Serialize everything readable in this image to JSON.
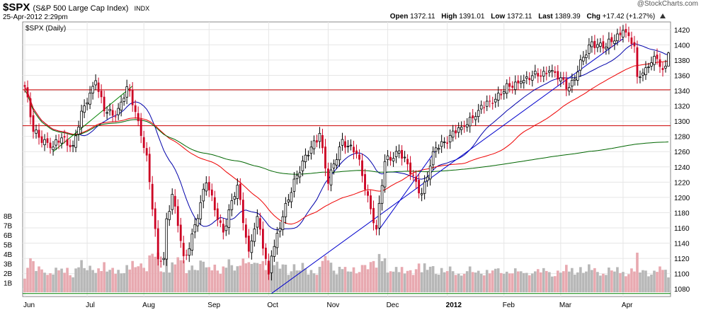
{
  "header": {
    "symbol": "$SPX",
    "name": "(S&P 500 Large Cap Index)",
    "exchange": "INDX",
    "timestamp": "25-Apr-2012 2:29pm",
    "open_label": "Open",
    "open": "1372.11",
    "high_label": "High",
    "high": "1391.01",
    "low_label": "Low",
    "low": "1372.11",
    "last_label": "Last",
    "last": "1389.39",
    "chg_label": "Chg",
    "chg": "+17.42 (+1.27%)",
    "watermark": "@StockCharts.com"
  },
  "chart_data": {
    "type": "candlestick",
    "title": "$SPX (Daily)",
    "ylim": [
      1070,
      1430
    ],
    "y_ticks": [
      1080,
      1100,
      1120,
      1140,
      1160,
      1180,
      1200,
      1220,
      1240,
      1260,
      1280,
      1300,
      1320,
      1340,
      1360,
      1380,
      1400,
      1420
    ],
    "volume_ticks": [
      "1B",
      "2B",
      "3B",
      "4B",
      "5B",
      "6B",
      "7B",
      "8B"
    ],
    "months": [
      "Jun",
      "Jul",
      "Aug",
      "Sep",
      "Oct",
      "Nov",
      "Dec",
      "2012",
      "Feb",
      "Mar",
      "Apr"
    ],
    "anchors": [
      [
        "2011-06-01",
        1345
      ],
      [
        "2011-06-06",
        1286
      ],
      [
        "2011-06-15",
        1266
      ],
      [
        "2011-06-20",
        1278
      ],
      [
        "2011-06-24",
        1268
      ],
      [
        "2011-06-30",
        1320
      ],
      [
        "2011-07-07",
        1353
      ],
      [
        "2011-07-12",
        1313
      ],
      [
        "2011-07-18",
        1306
      ],
      [
        "2011-07-22",
        1345
      ],
      [
        "2011-07-28",
        1300
      ],
      [
        "2011-08-02",
        1255
      ],
      [
        "2011-08-08",
        1119
      ],
      [
        "2011-08-10",
        1120
      ],
      [
        "2011-08-11",
        1172
      ],
      [
        "2011-08-15",
        1204
      ],
      [
        "2011-08-19",
        1123
      ],
      [
        "2011-08-22",
        1124
      ],
      [
        "2011-08-31",
        1219
      ],
      [
        "2011-09-09",
        1154
      ],
      [
        "2011-09-16",
        1216
      ],
      [
        "2011-09-22",
        1129
      ],
      [
        "2011-09-27",
        1175
      ],
      [
        "2011-10-03",
        1099
      ],
      [
        "2011-10-04",
        1123
      ],
      [
        "2011-10-14",
        1224
      ],
      [
        "2011-10-27",
        1284
      ],
      [
        "2011-11-01",
        1218
      ],
      [
        "2011-11-08",
        1276
      ],
      [
        "2011-11-15",
        1257
      ],
      [
        "2011-11-25",
        1158
      ],
      [
        "2011-11-30",
        1247
      ],
      [
        "2011-12-07",
        1261
      ],
      [
        "2011-12-19",
        1205
      ],
      [
        "2011-12-27",
        1265
      ],
      [
        "2012-01-10",
        1292
      ],
      [
        "2012-01-19",
        1314
      ],
      [
        "2012-01-25",
        1326
      ],
      [
        "2012-02-03",
        1345
      ],
      [
        "2012-02-09",
        1352
      ],
      [
        "2012-02-24",
        1366
      ],
      [
        "2012-03-06",
        1344
      ],
      [
        "2012-03-16",
        1404
      ],
      [
        "2012-03-23",
        1397
      ],
      [
        "2012-04-02",
        1419
      ],
      [
        "2012-04-06",
        1398
      ],
      [
        "2012-04-10",
        1358
      ],
      [
        "2012-04-13",
        1370
      ],
      [
        "2012-04-18",
        1385
      ],
      [
        "2012-04-23",
        1367
      ],
      [
        "2012-04-24",
        1372
      ],
      [
        "2012-04-25",
        1389
      ]
    ],
    "last_day": {
      "open": 1372.11,
      "high": 1391.01,
      "low": 1372.11,
      "close": 1389.39
    },
    "horizontal_lines": [
      {
        "value": 1341,
        "color": "#cc0000"
      },
      {
        "value": 1294,
        "color": "#cc0000"
      },
      {
        "value": 1074,
        "color": "#008000"
      }
    ],
    "trendlines": [
      {
        "start": "2011-10-04",
        "start_value": 1074,
        "end": "2012-04-02",
        "end_value": 1408,
        "color": "#0000cc"
      },
      {
        "start": "2011-06-15",
        "start_value": 1260,
        "end": "2011-07-26",
        "end_value": 1346,
        "color": "#008000"
      },
      {
        "start": "2011-11-28",
        "start_value": 1158,
        "end": "2011-12-27",
        "end_value": 1262,
        "color": "#0000cc"
      }
    ],
    "moving_averages": [
      {
        "period": 20,
        "color": "#0000aa"
      },
      {
        "period": 50,
        "color": "#ee0000"
      },
      {
        "period": 200,
        "color": "#006600"
      }
    ],
    "colors": {
      "up": "#000000",
      "down": "#cc0022",
      "vol_up": "#b7b7b7",
      "vol_down": "#e8a9b0"
    }
  }
}
